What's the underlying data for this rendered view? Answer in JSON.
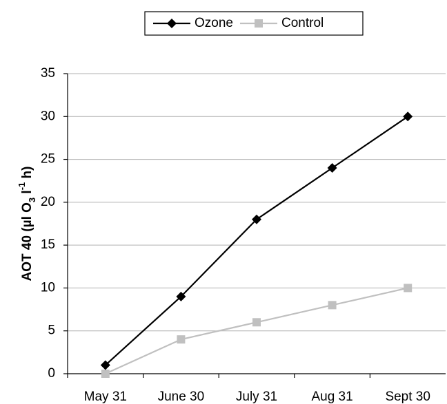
{
  "chart_data": {
    "type": "line",
    "categories": [
      "May 31",
      "June 30",
      "July 31",
      "Aug 31",
      "Sept 30"
    ],
    "series": [
      {
        "name": "Ozone",
        "color": "#000000",
        "marker": "diamond",
        "values": [
          1,
          9,
          18,
          24,
          30
        ]
      },
      {
        "name": "Control",
        "color": "#c0c0c0",
        "marker": "square",
        "values": [
          0,
          4,
          6,
          8,
          10
        ]
      }
    ],
    "ylabel": [
      "AOT 40 (µl O",
      "3",
      " l",
      "-1",
      " h)"
    ],
    "ylim": [
      0,
      35
    ],
    "yticks": [
      0,
      5,
      10,
      15,
      20,
      25,
      30,
      35
    ],
    "grid": true,
    "legend": "top"
  }
}
